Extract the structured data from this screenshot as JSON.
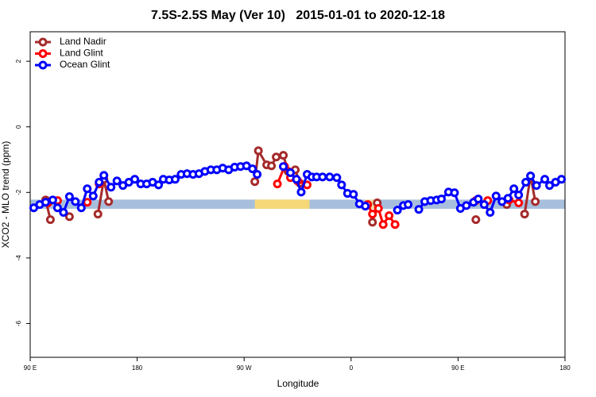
{
  "chart_data": {
    "type": "line",
    "title": "7.5S-2.5S May (Ver 10)   2015-01-01 to 2020-12-18",
    "x_label": "Longitude",
    "y_label": "XCO2 - MLO trend (ppm)",
    "xlim": [
      90,
      540
    ],
    "ylim": [
      -7.03,
      2.9
    ],
    "xticks": [
      {
        "value": 90,
        "label": "90 E"
      },
      180,
      {
        "value": 270,
        "label": "90 W"
      },
      {
        "value": 360,
        "label": "0"
      },
      {
        "value": 450,
        "label": "90 E"
      },
      {
        "value": 540,
        "label": "180"
      }
    ],
    "yticks": [
      -6,
      -4,
      -2,
      0,
      2
    ],
    "legend": "top-left",
    "shade_bands": [
      {
        "xlim": [
          90,
          540
        ],
        "ylim": [
          -2.5,
          -2.22
        ],
        "color": "#a7bfdd"
      },
      {
        "xlim": [
          279,
          325
        ],
        "ylim": [
          -2.5,
          -2.22
        ],
        "color": "#f7d878"
      },
      {
        "xlim": [
          372,
          385
        ],
        "ylim": [
          -2.5,
          -2.22
        ],
        "color": "#f0dba0"
      }
    ],
    "series": [
      {
        "name": "Land Nadir",
        "color": "#a52a2a",
        "x": [
          103,
          107,
          123,
          147,
          152,
          156,
          279,
          282,
          289,
          293,
          297,
          303,
          307,
          313,
          317,
          378,
          382,
          465,
          491,
          506,
          511,
          515
        ],
        "values": [
          -2.23,
          -2.83,
          -2.74,
          -2.66,
          -1.6,
          -2.28,
          -1.67,
          -0.73,
          -1.16,
          -1.19,
          -0.92,
          -0.87,
          -1.36,
          -1.31,
          -1.72,
          -2.91,
          -2.32,
          -2.83,
          -2.37,
          -2.66,
          -1.5,
          -2.28
        ]
      },
      {
        "name": "Land Glint",
        "color": "#ff0000",
        "x": [
          105,
          113,
          138,
          148,
          298,
          304,
          309,
          315,
          323,
          374,
          378,
          383,
          387,
          392,
          397,
          465,
          475,
          493,
          501
        ],
        "values": [
          -2.32,
          -2.25,
          -2.3,
          -1.74,
          -1.74,
          -1.21,
          -1.55,
          -1.65,
          -1.77,
          -2.37,
          -2.66,
          -2.49,
          -2.98,
          -2.71,
          -2.98,
          -2.25,
          -2.25,
          -2.23,
          -2.32
        ]
      },
      {
        "name": "Ocean Glint",
        "color": "#0000ff",
        "x": [
          93,
          98,
          103,
          109,
          113,
          118,
          123,
          128,
          133,
          138,
          143,
          148,
          152,
          158,
          163,
          168,
          173,
          178,
          183,
          188,
          193,
          198,
          202,
          207,
          212,
          217,
          222,
          227,
          232,
          237,
          242,
          247,
          252,
          257,
          262,
          267,
          272,
          277,
          281,
          303,
          309,
          314,
          318,
          323,
          327,
          331,
          336,
          342,
          348,
          352,
          357,
          362,
          367,
          372,
          399,
          404,
          408,
          417,
          422,
          427,
          432,
          436,
          442,
          447,
          452,
          457,
          463,
          467,
          472,
          477,
          482,
          487,
          492,
          497,
          501,
          507,
          511,
          516,
          523,
          527,
          532,
          537
        ],
        "values": [
          -2.47,
          -2.37,
          -2.3,
          -2.23,
          -2.47,
          -2.61,
          -2.13,
          -2.28,
          -2.47,
          -1.89,
          -2.11,
          -1.69,
          -1.48,
          -1.84,
          -1.65,
          -1.79,
          -1.69,
          -1.6,
          -1.74,
          -1.74,
          -1.69,
          -1.77,
          -1.6,
          -1.62,
          -1.6,
          -1.45,
          -1.43,
          -1.45,
          -1.43,
          -1.36,
          -1.31,
          -1.31,
          -1.26,
          -1.31,
          -1.23,
          -1.21,
          -1.19,
          -1.28,
          -1.45,
          -1.21,
          -1.4,
          -1.6,
          -1.99,
          -1.45,
          -1.53,
          -1.53,
          -1.53,
          -1.53,
          -1.55,
          -1.77,
          -2.03,
          -2.06,
          -2.35,
          -2.42,
          -2.54,
          -2.4,
          -2.37,
          -2.52,
          -2.28,
          -2.25,
          -2.23,
          -2.2,
          -1.99,
          -2.01,
          -2.49,
          -2.4,
          -2.3,
          -2.2,
          -2.37,
          -2.61,
          -2.11,
          -2.28,
          -2.18,
          -1.89,
          -2.08,
          -1.69,
          -1.5,
          -1.79,
          -1.6,
          -1.79,
          -1.69,
          -1.6
        ]
      }
    ]
  }
}
